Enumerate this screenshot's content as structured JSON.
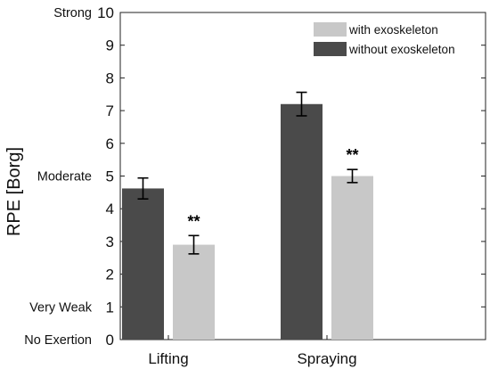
{
  "chart_data": {
    "type": "bar",
    "title": "",
    "xlabel": "",
    "ylabel": "RPE [Borg]",
    "ylim": [
      0,
      10
    ],
    "yticks": [
      0,
      1,
      2,
      3,
      4,
      5,
      6,
      7,
      8,
      9,
      10
    ],
    "ytick_descriptors": [
      {
        "value": 0,
        "label": "No Exertion"
      },
      {
        "value": 1,
        "label": "Very Weak"
      },
      {
        "value": 5,
        "label": "Moderate"
      },
      {
        "value": 10,
        "label": "Strong"
      }
    ],
    "categories": [
      "Lifting",
      "Spraying"
    ],
    "series": [
      {
        "name": "without exoskeleton",
        "color": "#4a4a4a",
        "values": [
          4.62,
          7.2
        ],
        "errors": [
          0.32,
          0.36
        ]
      },
      {
        "name": "with exoskeleton",
        "color": "#c8c8c8",
        "values": [
          2.9,
          5.0
        ],
        "errors": [
          0.28,
          0.2
        ]
      }
    ],
    "annotations": [
      {
        "category": "Lifting",
        "series": "with exoskeleton",
        "text": "**"
      },
      {
        "category": "Spraying",
        "series": "with exoskeleton",
        "text": "**"
      }
    ],
    "legend": {
      "position": "top-right",
      "order": [
        "with exoskeleton",
        "without exoskeleton"
      ]
    },
    "grid": false
  }
}
